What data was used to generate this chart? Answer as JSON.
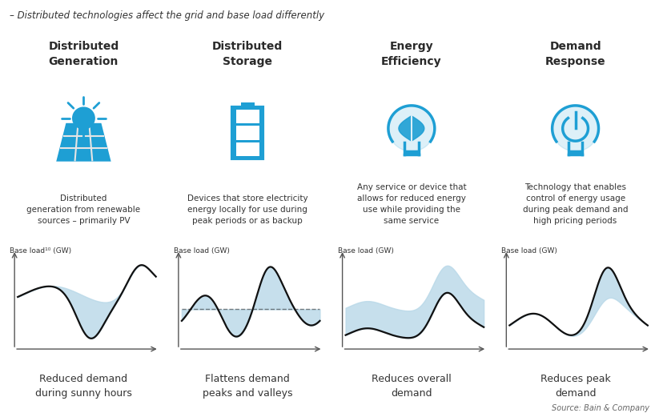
{
  "title": "– Distributed technologies affect the grid and base load differently",
  "source": "Source: Bain & Company",
  "bg_color": "#ffffff",
  "panel_bg": "#e5e5e5",
  "header_bg": "#d0d0d0",
  "bottom_bg": "#b8dce8",
  "blue": "#1e9fd4",
  "dark_text": "#2a2a2a",
  "gray_text": "#444444",
  "light_blue_fill": "#b8d8e8",
  "cols": [
    {
      "header": "Distributed\nGeneration",
      "description": "Distributed\ngeneration from renewable\nsources – primarily PV",
      "axis_label": "Base load¹⁰ (GW)",
      "footer": "Reduced demand\nduring sunny hours",
      "curve_type": "generation"
    },
    {
      "header": "Distributed\nStorage",
      "description": "Devices that store electricity\nenergy locally for use during\npeak periods or as backup",
      "axis_label": "Base load (GW)",
      "footer": "Flattens demand\npeaks and valleys",
      "curve_type": "storage"
    },
    {
      "header": "Energy\nEfficiency",
      "description": "Any service or device that\nallows for reduced energy\nuse while providing the\nsame service",
      "axis_label": "Base load (GW)",
      "footer": "Reduces overall\ndemand",
      "curve_type": "efficiency"
    },
    {
      "header": "Demand\nResponse",
      "description": "Technology that enables\ncontrol of energy usage\nduring peak demand and\nhigh pricing periods",
      "axis_label": "Base load (GW)",
      "footer": "Reduces peak\ndemand",
      "curve_type": "response"
    }
  ]
}
